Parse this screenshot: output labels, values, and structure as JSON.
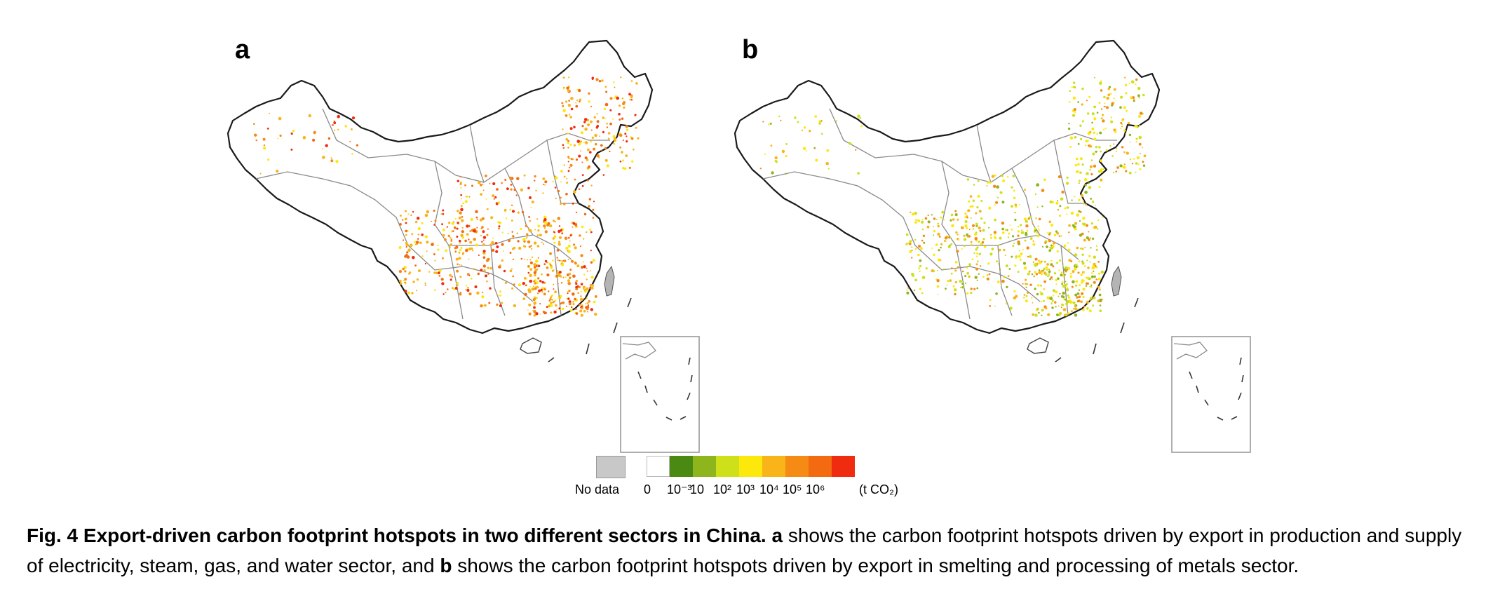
{
  "panels": [
    {
      "id": "a",
      "label": "a"
    },
    {
      "id": "b",
      "label": "b"
    }
  ],
  "legend": {
    "no_data_label": "No data",
    "no_data_color": "#c8c8c8",
    "unit": "(t CO₂)",
    "bins": [
      {
        "color": "#ffffff",
        "tick": "0"
      },
      {
        "color": "#4a8a12",
        "tick": "10⁻³"
      },
      {
        "color": "#8eb51c",
        "tick": "10"
      },
      {
        "color": "#cde01a",
        "tick": "10²"
      },
      {
        "color": "#fce80a",
        "tick": "10³"
      },
      {
        "color": "#f8b418",
        "tick": "10⁴"
      },
      {
        "color": "#f58a14",
        "tick": "10⁵"
      },
      {
        "color": "#f36a10",
        "tick": "10⁶"
      },
      {
        "color": "#ef2b10",
        "tick": ""
      }
    ]
  },
  "caption": {
    "fig_label": "Fig. 4",
    "title": "Export-driven carbon footprint hotspots in two different sectors in China.",
    "a_label": "a",
    "a_text": "shows the carbon footprint hotspots driven by export in production and supply of electricity, steam, gas, and water sector, and",
    "b_label": "b",
    "b_text": "shows the carbon footprint hotspots driven by export in smelting and processing of metals sector."
  }
}
